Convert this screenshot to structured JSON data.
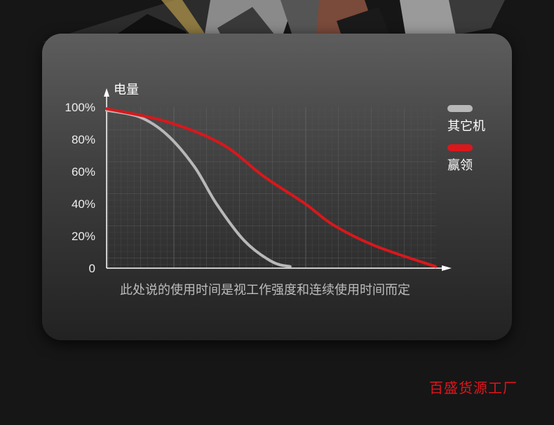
{
  "chart_data": {
    "type": "line",
    "ylabel": "电量",
    "xlabel": "",
    "y_ticks": [
      "100%",
      "80%",
      "60%",
      "40%",
      "20%",
      "0"
    ],
    "ylim": [
      0,
      100
    ],
    "xlim": [
      0,
      100
    ],
    "grid": true,
    "legend_position": "right",
    "series": [
      {
        "name": "其它机",
        "color": "#b8b8b8",
        "x": [
          0,
          9.9,
          18.3,
          26.7,
          33.4,
          41.9,
          50.3,
          55.8
        ],
        "y": [
          98,
          94,
          83,
          63,
          40,
          17,
          4,
          1
        ]
      },
      {
        "name": "赢领",
        "color": "#d8181c",
        "x": [
          0,
          18.3,
          35.1,
          47.8,
          60.4,
          68.8,
          81.5,
          100
        ],
        "y": [
          99,
          91,
          77,
          57,
          40,
          27,
          14,
          1
        ]
      }
    ],
    "note": "此处说的使用时间是视工作强度和连续使用时间而定"
  },
  "watermark": "百盛货源工厂"
}
